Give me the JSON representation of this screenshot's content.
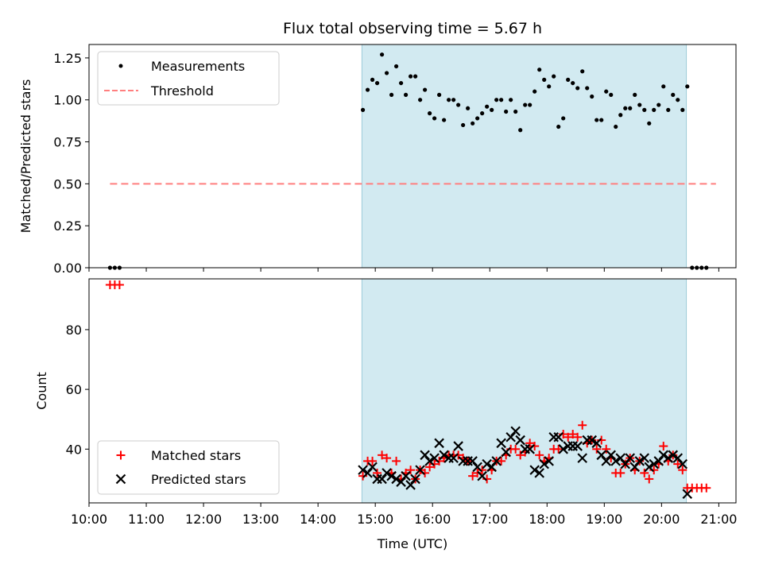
{
  "chart_data": [
    {
      "type": "scatter",
      "title": "Flux total observing time = 5.67 h",
      "xlabel": "",
      "ylabel": "Matched/Predicted stars",
      "xlim": [
        "10:00",
        "21:18"
      ],
      "ylim": [
        0,
        1.33
      ],
      "yticks": [
        0.0,
        0.25,
        0.5,
        0.75,
        1.0,
        1.25
      ],
      "ytick_labels": [
        "0.00",
        "0.25",
        "0.50",
        "0.75",
        "1.00",
        "1.25"
      ],
      "shaded_region": {
        "start": "14:46",
        "end": "20:26",
        "color": "#add8e6"
      },
      "legend": {
        "position": "upper-left"
      },
      "series": [
        {
          "name": "Measurements",
          "style": "points",
          "color": "#000000",
          "x": [
            "10:22",
            "10:27",
            "10:32",
            "14:47",
            "14:52",
            "14:57",
            "15:02",
            "15:07",
            "15:12",
            "15:17",
            "15:22",
            "15:27",
            "15:32",
            "15:37",
            "15:42",
            "15:47",
            "15:52",
            "15:57",
            "16:02",
            "16:07",
            "16:12",
            "16:17",
            "16:22",
            "16:27",
            "16:32",
            "16:37",
            "16:42",
            "16:47",
            "16:52",
            "16:57",
            "17:02",
            "17:07",
            "17:12",
            "17:17",
            "17:22",
            "17:27",
            "17:32",
            "17:37",
            "17:42",
            "17:47",
            "17:52",
            "17:57",
            "18:02",
            "18:07",
            "18:12",
            "18:17",
            "18:22",
            "18:27",
            "18:32",
            "18:37",
            "18:42",
            "18:47",
            "18:52",
            "18:57",
            "19:02",
            "19:07",
            "19:12",
            "19:17",
            "19:22",
            "19:27",
            "19:32",
            "19:37",
            "19:42",
            "19:47",
            "19:52",
            "19:57",
            "20:02",
            "20:07",
            "20:12",
            "20:17",
            "20:22",
            "20:27",
            "20:32",
            "20:37",
            "20:42",
            "20:47"
          ],
          "y": [
            0.0,
            0.0,
            0.0,
            0.94,
            1.06,
            1.12,
            1.1,
            1.27,
            1.16,
            1.03,
            1.2,
            1.1,
            1.03,
            1.14,
            1.14,
            1.0,
            1.06,
            0.92,
            0.89,
            1.03,
            0.88,
            1.0,
            1.0,
            0.97,
            0.85,
            0.95,
            0.86,
            0.89,
            0.92,
            0.96,
            0.94,
            1.0,
            1.0,
            0.93,
            1.0,
            0.93,
            0.82,
            0.97,
            0.97,
            1.05,
            1.18,
            1.12,
            1.08,
            1.14,
            0.84,
            0.89,
            1.12,
            1.1,
            1.07,
            1.17,
            1.07,
            1.02,
            0.88,
            0.88,
            1.05,
            1.03,
            0.84,
            0.91,
            0.95,
            0.95,
            1.03,
            0.97,
            0.94,
            0.86,
            0.94,
            0.97,
            1.08,
            0.94,
            1.03,
            1.0,
            0.94,
            1.08,
            0.0,
            0.0,
            0.0,
            0.0
          ]
        },
        {
          "name": "Threshold",
          "style": "dashed-line",
          "color": "#ff7f7f",
          "x": [
            "10:22",
            "20:57"
          ],
          "y": [
            0.5,
            0.5
          ]
        }
      ]
    },
    {
      "type": "scatter",
      "title": "",
      "xlabel": "Time (UTC)",
      "ylabel": "Count",
      "xlim": [
        "10:00",
        "21:18"
      ],
      "ylim": [
        22,
        97
      ],
      "yticks": [
        40,
        60,
        80
      ],
      "ytick_labels": [
        "40",
        "60",
        "80"
      ],
      "xticks": [
        "10:00",
        "11:00",
        "12:00",
        "13:00",
        "14:00",
        "15:00",
        "16:00",
        "17:00",
        "18:00",
        "19:00",
        "20:00",
        "21:00"
      ],
      "shaded_region": {
        "start": "14:46",
        "end": "20:26",
        "color": "#add8e6"
      },
      "legend": {
        "position": "lower-left"
      },
      "series": [
        {
          "name": "Matched stars",
          "style": "plus",
          "color": "#ff0000",
          "x": [
            "10:22",
            "10:27",
            "10:32",
            "14:47",
            "14:52",
            "14:57",
            "15:02",
            "15:07",
            "15:12",
            "15:17",
            "15:22",
            "15:27",
            "15:32",
            "15:37",
            "15:42",
            "15:47",
            "15:52",
            "15:57",
            "16:02",
            "16:07",
            "16:12",
            "16:17",
            "16:22",
            "16:27",
            "16:32",
            "16:37",
            "16:42",
            "16:47",
            "16:52",
            "16:57",
            "17:02",
            "17:07",
            "17:12",
            "17:17",
            "17:22",
            "17:27",
            "17:32",
            "17:37",
            "17:42",
            "17:47",
            "17:52",
            "17:57",
            "18:02",
            "18:07",
            "18:12",
            "18:17",
            "18:22",
            "18:27",
            "18:32",
            "18:37",
            "18:42",
            "18:47",
            "18:52",
            "18:57",
            "19:02",
            "19:07",
            "19:12",
            "19:17",
            "19:22",
            "19:27",
            "19:32",
            "19:37",
            "19:42",
            "19:47",
            "19:52",
            "19:57",
            "20:02",
            "20:07",
            "20:12",
            "20:17",
            "20:22",
            "20:27",
            "20:32",
            "20:37",
            "20:42",
            "20:47"
          ],
          "y": [
            95,
            95,
            95,
            31,
            36,
            36,
            32,
            38,
            37,
            32,
            36,
            30,
            32,
            33,
            30,
            33,
            32,
            34,
            35,
            36,
            37,
            38,
            38,
            38,
            37,
            36,
            31,
            32,
            33,
            30,
            33,
            36,
            36,
            38,
            40,
            40,
            38,
            39,
            42,
            41,
            38,
            36,
            37,
            40,
            40,
            45,
            44,
            45,
            44,
            48,
            42,
            43,
            40,
            43,
            40,
            37,
            32,
            32,
            35,
            37,
            33,
            36,
            32,
            30,
            33,
            35,
            41,
            36,
            38,
            35,
            33,
            27,
            27,
            27,
            27,
            27
          ]
        },
        {
          "name": "Predicted stars",
          "style": "x",
          "color": "#000000",
          "x": [
            "14:47",
            "14:52",
            "14:57",
            "15:02",
            "15:07",
            "15:12",
            "15:17",
            "15:22",
            "15:27",
            "15:32",
            "15:37",
            "15:42",
            "15:47",
            "15:52",
            "15:57",
            "16:02",
            "16:07",
            "16:12",
            "16:17",
            "16:22",
            "16:27",
            "16:32",
            "16:37",
            "16:42",
            "16:47",
            "16:52",
            "16:57",
            "17:02",
            "17:07",
            "17:12",
            "17:17",
            "17:22",
            "17:27",
            "17:32",
            "17:37",
            "17:42",
            "17:47",
            "17:52",
            "17:57",
            "18:02",
            "18:07",
            "18:12",
            "18:17",
            "18:22",
            "18:27",
            "18:32",
            "18:37",
            "18:42",
            "18:47",
            "18:52",
            "18:57",
            "19:02",
            "19:07",
            "19:12",
            "19:17",
            "19:22",
            "19:27",
            "19:32",
            "19:37",
            "19:42",
            "19:47",
            "19:52",
            "19:57",
            "20:02",
            "20:07",
            "20:12",
            "20:17",
            "20:22",
            "20:27"
          ],
          "y": [
            33,
            32,
            34,
            30,
            30,
            32,
            31,
            30,
            29,
            31,
            28,
            30,
            33,
            38,
            36,
            37,
            42,
            38,
            37,
            37,
            41,
            36,
            36,
            36,
            34,
            31,
            35,
            34,
            36,
            42,
            39,
            44,
            46,
            43,
            40,
            40,
            33,
            32,
            35,
            36,
            44,
            44,
            40,
            41,
            41,
            41,
            37,
            43,
            43,
            42,
            38,
            36,
            38,
            36,
            37,
            35,
            37,
            34,
            36,
            37,
            34,
            35,
            36,
            38,
            37,
            38,
            37,
            35,
            25
          ]
        }
      ]
    }
  ]
}
